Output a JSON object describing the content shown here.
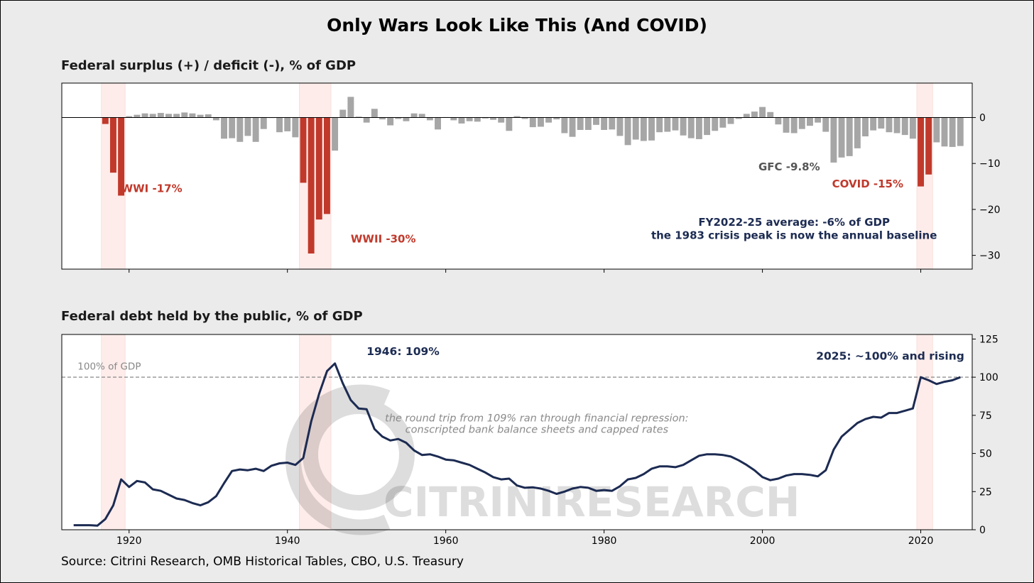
{
  "title": "Only Wars Look Like This (And COVID)",
  "source": "Source: Citrini Research, OMB Historical Tables, CBO, U.S. Treasury",
  "watermark": "CITRINIRESEARCH",
  "colors": {
    "war_bar": "#c0392b",
    "normal_bar": "#a6a6a6",
    "debt_line": "#1c2b52",
    "shade": "#fdecea",
    "annotation_dark": "#1c2b52",
    "annotation_gray": "#555555",
    "reference_line": "#888888"
  },
  "chart_data": [
    {
      "type": "bar",
      "title": "Federal surplus (+) / deficit (-), % of GDP",
      "xlim": [
        1911.5,
        2026.5
      ],
      "ylim": [
        -33,
        7.5
      ],
      "yticks": [
        0,
        -10,
        -20,
        -30
      ],
      "ytick_labels": [
        "0",
        "−10",
        "−20",
        "−30"
      ],
      "xticks": [
        1920,
        1940,
        1960,
        1980,
        2000,
        2020
      ],
      "shaded_periods": [
        [
          1916.5,
          1919.5
        ],
        [
          1941.5,
          1945.5
        ],
        [
          2019.5,
          2021.5
        ]
      ],
      "highlight_years": [
        1917,
        1918,
        1919,
        1942,
        1943,
        1944,
        1945,
        2020,
        2021
      ],
      "years": [
        1917,
        1918,
        1919,
        1920,
        1921,
        1922,
        1923,
        1924,
        1925,
        1926,
        1927,
        1928,
        1929,
        1930,
        1931,
        1932,
        1933,
        1934,
        1935,
        1936,
        1937,
        1938,
        1939,
        1940,
        1941,
        1942,
        1943,
        1944,
        1945,
        1946,
        1947,
        1948,
        1949,
        1950,
        1951,
        1952,
        1953,
        1954,
        1955,
        1956,
        1957,
        1958,
        1959,
        1960,
        1961,
        1962,
        1963,
        1964,
        1965,
        1966,
        1967,
        1968,
        1969,
        1970,
        1971,
        1972,
        1973,
        1974,
        1975,
        1976,
        1977,
        1978,
        1979,
        1980,
        1981,
        1982,
        1983,
        1984,
        1985,
        1986,
        1987,
        1988,
        1989,
        1990,
        1991,
        1992,
        1993,
        1994,
        1995,
        1996,
        1997,
        1998,
        1999,
        2000,
        2001,
        2002,
        2003,
        2004,
        2005,
        2006,
        2007,
        2008,
        2009,
        2010,
        2011,
        2012,
        2013,
        2014,
        2015,
        2016,
        2017,
        2018,
        2019,
        2020,
        2021,
        2022,
        2023,
        2024,
        2025
      ],
      "values": [
        -1.4,
        -12.0,
        -17.0,
        0.3,
        0.6,
        0.9,
        0.8,
        1.0,
        0.8,
        0.8,
        1.1,
        0.9,
        0.6,
        0.7,
        -0.6,
        -4.6,
        -4.5,
        -5.3,
        -4.0,
        -5.3,
        -2.5,
        -0.1,
        -3.2,
        -3.0,
        -4.3,
        -14.2,
        -29.6,
        -22.2,
        -21.0,
        -7.2,
        1.7,
        4.5,
        0.2,
        -1.1,
        1.9,
        -0.4,
        -1.7,
        -0.3,
        -0.8,
        0.9,
        0.8,
        -0.6,
        -2.6,
        0.1,
        -0.6,
        -1.3,
        -0.8,
        -0.9,
        -0.2,
        -0.5,
        -1.1,
        -2.9,
        0.3,
        -0.3,
        -2.1,
        -2.0,
        -1.1,
        -0.4,
        -3.4,
        -4.2,
        -2.7,
        -2.7,
        -1.6,
        -2.7,
        -2.6,
        -4.0,
        -6.0,
        -4.8,
        -5.1,
        -5.0,
        -3.2,
        -3.1,
        -2.8,
        -3.9,
        -4.5,
        -4.7,
        -3.8,
        -2.9,
        -2.2,
        -1.4,
        -0.3,
        0.8,
        1.3,
        2.3,
        1.2,
        -1.5,
        -3.3,
        -3.4,
        -2.5,
        -1.8,
        -1.1,
        -3.1,
        -9.8,
        -8.7,
        -8.4,
        -6.7,
        -4.1,
        -2.8,
        -2.4,
        -3.2,
        -3.4,
        -3.8,
        -4.6,
        -15.0,
        -12.4,
        -5.4,
        -6.3,
        -6.4,
        -6.2
      ],
      "annotations": [
        {
          "text": "WWI  -17%",
          "x": 1919.0,
          "y": -16.2,
          "color": "#c0392b"
        },
        {
          "text": "WWII  -30%",
          "x": 1948.0,
          "y": -27.2,
          "color": "#c0392b"
        },
        {
          "text": "GFC  -9.8%",
          "x": 1999.5,
          "y": -11.5,
          "color": "#555555"
        },
        {
          "text": "COVID  -15%",
          "x": 2008.8,
          "y": -15.2,
          "color": "#c0392b"
        }
      ],
      "callout": {
        "line1": "FY2022-25 average: -6% of GDP",
        "line2": "the 1983 crisis peak is now the annual baseline",
        "x": 2004.0,
        "y1": -23.6,
        "y2": -26.4,
        "color": "#1c2b52"
      }
    },
    {
      "type": "line",
      "title": "Federal debt held by the public, % of GDP",
      "xlim": [
        1911.5,
        2026.5
      ],
      "ylim": [
        0,
        128
      ],
      "yticks": [
        0,
        25,
        50,
        75,
        100,
        125
      ],
      "ytick_labels": [
        "0",
        "25",
        "50",
        "75",
        "100",
        "125"
      ],
      "xticks": [
        1920,
        1940,
        1960,
        1980,
        2000,
        2020
      ],
      "xtick_labels": [
        "1920",
        "1940",
        "1960",
        "1980",
        "2000",
        "2020"
      ],
      "shaded_periods": [
        [
          1916.5,
          1919.5
        ],
        [
          1941.5,
          1945.5
        ],
        [
          2019.5,
          2021.5
        ]
      ],
      "reference_line": {
        "y": 100,
        "label": "100% of GDP",
        "label_x": 1913.5,
        "label_y": 105
      },
      "x": [
        1913,
        1914,
        1915,
        1916,
        1917,
        1918,
        1919,
        1920,
        1921,
        1922,
        1923,
        1924,
        1925,
        1926,
        1927,
        1928,
        1929,
        1930,
        1931,
        1932,
        1933,
        1934,
        1935,
        1936,
        1937,
        1938,
        1939,
        1940,
        1941,
        1942,
        1943,
        1944,
        1945,
        1946,
        1947,
        1948,
        1949,
        1950,
        1951,
        1952,
        1953,
        1954,
        1955,
        1956,
        1957,
        1958,
        1959,
        1960,
        1961,
        1962,
        1963,
        1964,
        1965,
        1966,
        1967,
        1968,
        1969,
        1970,
        1971,
        1972,
        1973,
        1974,
        1975,
        1976,
        1977,
        1978,
        1979,
        1980,
        1981,
        1982,
        1983,
        1984,
        1985,
        1986,
        1987,
        1988,
        1989,
        1990,
        1991,
        1992,
        1993,
        1994,
        1995,
        1996,
        1997,
        1998,
        1999,
        2000,
        2001,
        2002,
        2003,
        2004,
        2005,
        2006,
        2007,
        2008,
        2009,
        2010,
        2011,
        2012,
        2013,
        2014,
        2015,
        2016,
        2017,
        2018,
        2019,
        2020,
        2021,
        2022,
        2023,
        2024,
        2025
      ],
      "y": [
        3,
        3,
        3,
        2.7,
        7,
        16,
        33,
        28,
        32,
        31,
        26.5,
        25.5,
        23,
        20.5,
        19.5,
        17.5,
        16,
        18,
        22,
        30.5,
        38.5,
        39.5,
        39,
        40,
        38.5,
        42,
        43.5,
        44,
        42.5,
        47,
        71,
        89,
        104,
        109,
        96,
        85,
        79.5,
        79,
        66,
        61,
        58.5,
        59.5,
        57,
        52,
        49,
        49.5,
        48,
        46,
        45.5,
        44,
        42.5,
        40,
        37.5,
        34.5,
        33,
        33.5,
        29,
        27.5,
        27.8,
        27,
        25.5,
        23.5,
        25,
        27,
        28,
        27.5,
        25.5,
        26,
        25.5,
        28.5,
        33,
        34,
        36.5,
        40,
        41.5,
        41.5,
        41,
        42.5,
        45.5,
        48.5,
        49.5,
        49.5,
        49,
        48,
        45.5,
        42.5,
        39,
        34.5,
        32.5,
        33.5,
        35.5,
        36.5,
        36.5,
        36,
        35,
        39,
        52.5,
        61,
        65.5,
        70,
        72.5,
        74,
        73.5,
        76.5,
        76.5,
        78,
        79.5,
        100,
        98,
        95.5,
        97,
        98,
        100
      ],
      "annotations": [
        {
          "text": "1946: 109%",
          "x": 1950.0,
          "y": 114.5,
          "color": "#1c2b52"
        },
        {
          "text": "2025: ~100% and rising",
          "x": 2025.5,
          "y": 111.5,
          "color": "#1c2b52",
          "anchor": "end"
        }
      ],
      "note": {
        "line1": "the round trip from 109% ran through financial repression:",
        "line2": "conscripted bank balance sheets and capped rates",
        "x": 1971.5,
        "y1": 71,
        "y2": 63.5
      }
    }
  ]
}
